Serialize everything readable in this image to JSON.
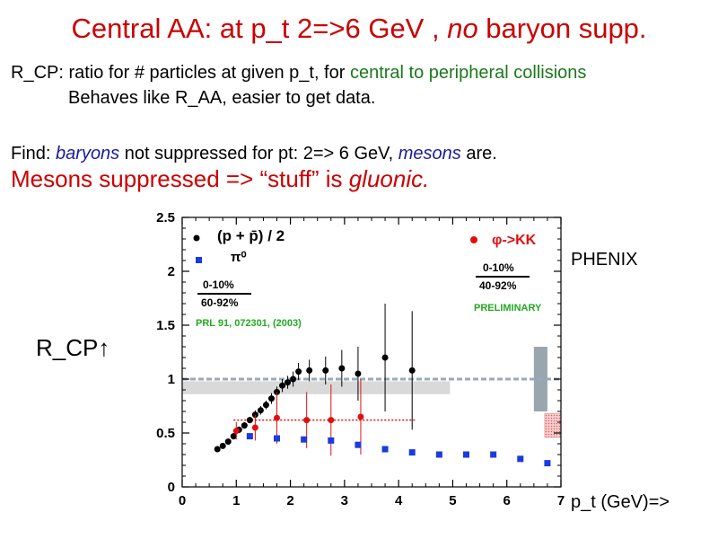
{
  "slide": {
    "title_main": "Central AA: at p_t 2=>6 GeV , ",
    "title_italic": "no",
    "title_end": " baryon supp.",
    "line1_a": "R_CP: ratio for # particles at given p_t, for ",
    "line1_b": "central to peripheral collisions",
    "line2": "Behaves like R_AA, easier to get data.",
    "line3_a": "Find: ",
    "line3_b": "baryons",
    "line3_c": " not suppressed for pt: 2=> 6 GeV, ",
    "line3_d": "mesons",
    "line3_e": " are.",
    "line4_a": "Mesons suppressed => “stuff” is ",
    "line4_b": "gluonic.",
    "ylabel": "R_CP↑",
    "xlabel": "p_t (GeV)=>",
    "phenix": "PHENIX"
  },
  "chart_data": {
    "type": "scatter",
    "xlim": [
      0,
      7
    ],
    "ylim": [
      0,
      2.5
    ],
    "x_ticks": [
      "0",
      "1",
      "2",
      "3",
      "4",
      "5",
      "6",
      "7"
    ],
    "y_ticks": [
      "0",
      "0.5",
      "1",
      "1.5",
      "2",
      "2.5"
    ],
    "legend": {
      "proton_label": "(p + p̄) / 2",
      "pi0_label": "π⁰",
      "ratio_num_left": "0-10%",
      "ratio_den_left": "60-92%",
      "ref_left": "PRL 91, 072301, (2003)",
      "phi_label": "φ->KK",
      "ratio_num_right": "0-10%",
      "ratio_den_right": "40-92%",
      "preliminary": "PRELIMINARY"
    },
    "colors": {
      "proton": "#000000",
      "pi0": "#1a3be0",
      "phi": "#e01010",
      "ref_text": "#22aa22",
      "band": "#d9d9d9",
      "dashed": "#9aaabb",
      "syst_box": "#9aa6ae",
      "hatch": "#e07070"
    },
    "series": [
      {
        "name": "(p + p̄) / 2",
        "marker": "circle",
        "x": [
          0.65,
          0.75,
          0.85,
          0.95,
          1.05,
          1.15,
          1.25,
          1.35,
          1.45,
          1.55,
          1.65,
          1.75,
          1.85,
          1.95,
          2.05,
          2.15,
          2.35,
          2.65,
          2.95,
          3.25,
          3.75,
          4.25
        ],
        "y": [
          0.35,
          0.38,
          0.42,
          0.47,
          0.53,
          0.57,
          0.62,
          0.67,
          0.71,
          0.76,
          0.82,
          0.88,
          0.94,
          0.97,
          1.0,
          1.07,
          1.08,
          1.08,
          1.1,
          1.05,
          1.2,
          1.08
        ],
        "err": [
          0.02,
          0.02,
          0.02,
          0.03,
          0.03,
          0.03,
          0.03,
          0.04,
          0.04,
          0.04,
          0.05,
          0.05,
          0.06,
          0.06,
          0.07,
          0.08,
          0.1,
          0.13,
          0.17,
          0.25,
          0.5,
          0.55
        ]
      },
      {
        "name": "φ->KK",
        "marker": "circle",
        "x": [
          1.0,
          1.35,
          1.75,
          2.3,
          2.75,
          3.3
        ],
        "y": [
          0.52,
          0.55,
          0.64,
          0.62,
          0.62,
          0.65
        ],
        "err": [
          0.08,
          0.12,
          0.24,
          0.26,
          0.33,
          0.35
        ]
      },
      {
        "name": "π⁰",
        "marker": "square",
        "x": [
          1.25,
          1.75,
          2.25,
          2.75,
          3.25,
          3.75,
          4.25,
          4.75,
          5.25,
          5.75,
          6.25,
          6.75
        ],
        "y": [
          0.47,
          0.45,
          0.44,
          0.43,
          0.39,
          0.35,
          0.32,
          0.3,
          0.3,
          0.3,
          0.26,
          0.22
        ],
        "err": [
          0.015,
          0.015,
          0.015,
          0.015,
          0.015,
          0.015,
          0.015,
          0.015,
          0.02,
          0.02,
          0.02,
          0.02
        ]
      }
    ],
    "reference_line_y": 1.0,
    "band": {
      "x": [
        0,
        4.95
      ],
      "y": [
        0.86,
        0.98
      ]
    },
    "phi_ref_line": {
      "x": [
        0.95,
        4.3
      ],
      "y": 0.62
    },
    "syst_box": {
      "x": [
        6.5,
        6.75
      ],
      "y": [
        0.7,
        1.3
      ]
    },
    "hatch_box": {
      "x": [
        6.7,
        7.0
      ],
      "y": [
        0.46,
        0.68
      ]
    }
  }
}
